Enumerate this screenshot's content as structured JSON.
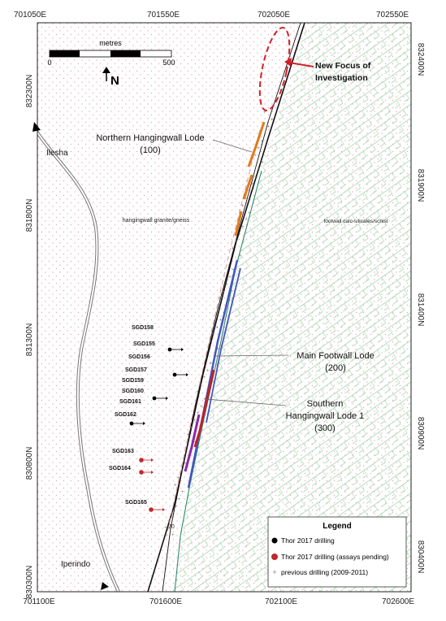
{
  "coords": {
    "top": [
      "701050E",
      "701550E",
      "702050E",
      "702550E"
    ],
    "bottom": [
      "701100E",
      "701600E",
      "702100E",
      "702600E"
    ],
    "left": [
      "832300N",
      "831800N",
      "831300N",
      "830800N",
      "830300N"
    ],
    "right": [
      "832400N",
      "831900N",
      "831400N",
      "830900N",
      "830400N"
    ]
  },
  "scale_bar": {
    "title": "metres",
    "start": "0",
    "end": "500",
    "north": "N"
  },
  "places": {
    "ilesha": "Ilesha",
    "iperindo": "Iperindo"
  },
  "zones": {
    "hangingwall": "hangingwall granite/gneiss",
    "footwall": "footwall calc-silicates/schist"
  },
  "callouts": {
    "new_focus_1": "New Focus of",
    "new_focus_2": "Investigation",
    "northern_1": "Northern Hangingwall Lode",
    "northern_2": "(100)",
    "main_1": "Main Footwall Lode",
    "main_2": "(200)",
    "southern_1": "Southern",
    "southern_2": "Hangingwall Lode 1",
    "southern_3": "(300)"
  },
  "drillholes": [
    "SGD158",
    "SGD155",
    "SGD156",
    "SGD157",
    "SGD159",
    "SGD160",
    "SGD161",
    "SGD162",
    "SGD163",
    "SGD164",
    "SGD165"
  ],
  "dip_label": "70",
  "legend": {
    "title": "Legend",
    "items": [
      {
        "label": "Thor 2017 drilling",
        "color": "#000000"
      },
      {
        "label": "Thor 2017 drilling (assays pending)",
        "color": "#c0282d"
      },
      {
        "label": "previous drilling (2009-2011)",
        "color": "#888888"
      }
    ]
  },
  "colors": {
    "northern_lode": "#e07b1a",
    "main_lode": "#4455c0",
    "southern_lode": "#c0202a",
    "purple_lode": "#8a2aa8",
    "focus": "#d0202a",
    "footwall_hatch": "#9fd3a8",
    "hangingwall_dots": "#e8a8b8"
  }
}
